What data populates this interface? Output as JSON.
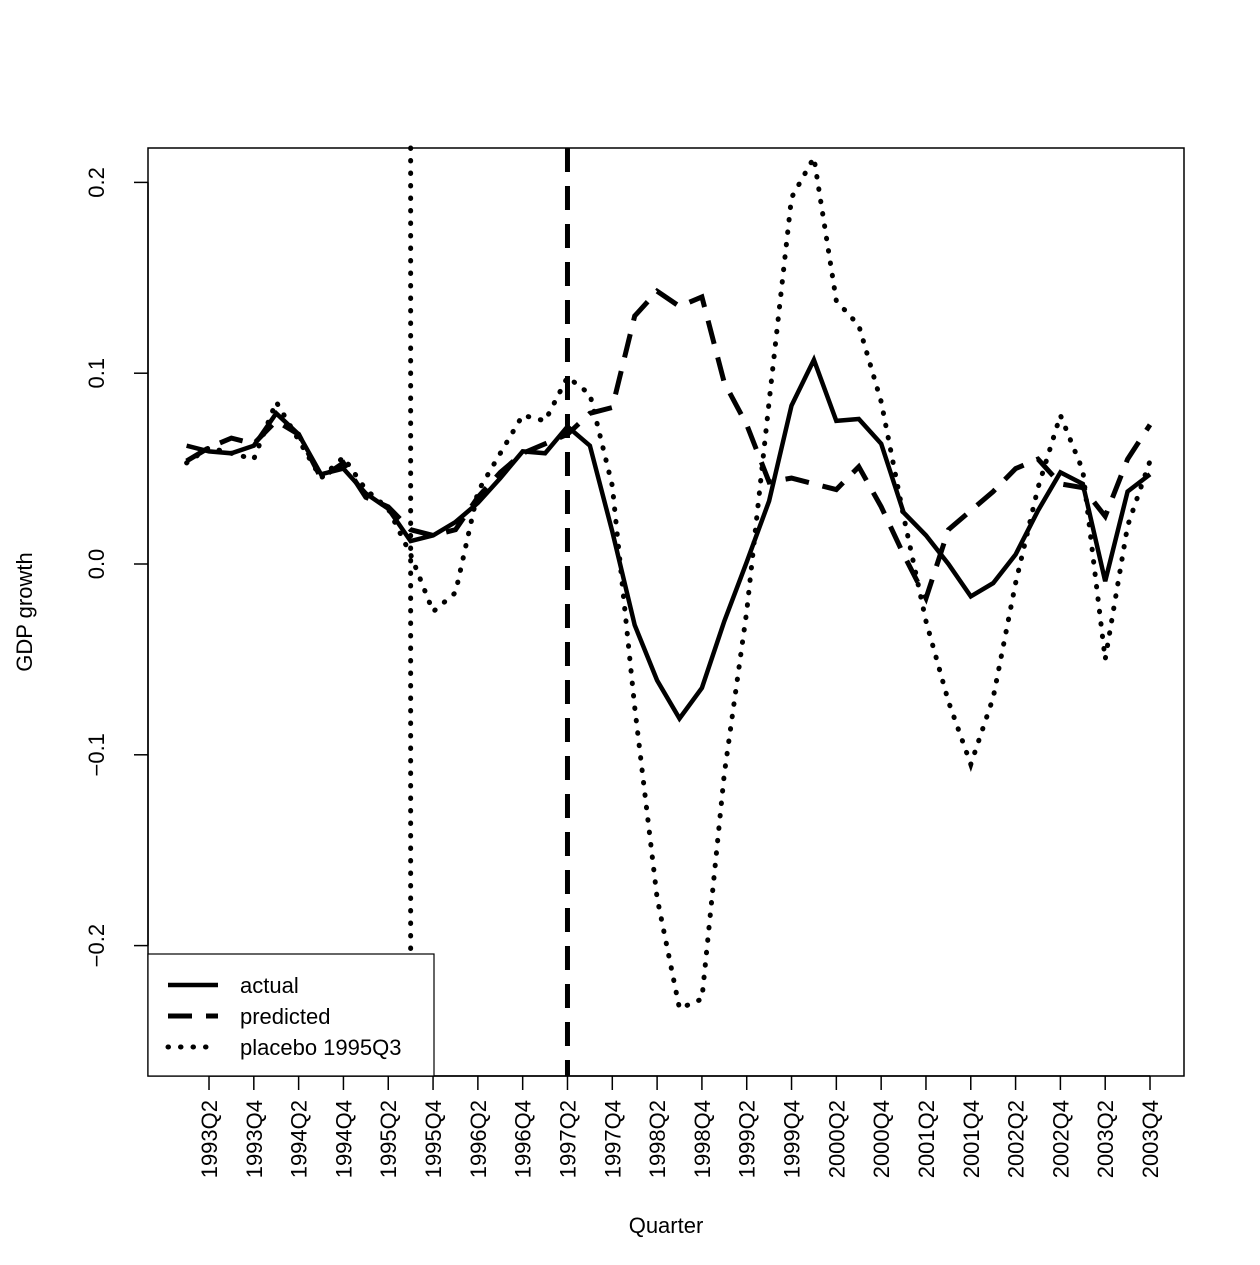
{
  "chart_data": {
    "type": "line",
    "xlabel": "Quarter",
    "ylabel": "GDP growth",
    "ylim": [
      -0.27,
      0.218
    ],
    "yticks": [
      {
        "value": -0.2,
        "label": "−0.2"
      },
      {
        "value": -0.1,
        "label": "−0.1"
      },
      {
        "value": 0.0,
        "label": "0.0"
      },
      {
        "value": 0.1,
        "label": "0.1"
      },
      {
        "value": 0.2,
        "label": "0.2"
      }
    ],
    "categories": [
      "1993Q1",
      "1993Q2",
      "1993Q3",
      "1993Q4",
      "1994Q1",
      "1994Q2",
      "1994Q3",
      "1994Q4",
      "1995Q1",
      "1995Q2",
      "1995Q3",
      "1995Q4",
      "1996Q1",
      "1996Q2",
      "1996Q3",
      "1996Q4",
      "1997Q1",
      "1997Q2",
      "1997Q3",
      "1997Q4",
      "1998Q1",
      "1998Q2",
      "1998Q3",
      "1998Q4",
      "1999Q1",
      "1999Q2",
      "1999Q3",
      "1999Q4",
      "2000Q1",
      "2000Q2",
      "2000Q3",
      "2000Q4",
      "2001Q1",
      "2001Q2",
      "2001Q3",
      "2001Q4",
      "2002Q1",
      "2002Q2",
      "2002Q3",
      "2002Q4",
      "2003Q1",
      "2003Q2",
      "2003Q3",
      "2003Q4"
    ],
    "x_tick_labels": [
      "1993Q2",
      "1993Q4",
      "1994Q2",
      "1994Q4",
      "1995Q2",
      "1995Q4",
      "1996Q2",
      "1996Q4",
      "1997Q2",
      "1997Q4",
      "1998Q2",
      "1998Q4",
      "1999Q2",
      "1999Q4",
      "2000Q2",
      "2000Q4",
      "2001Q2",
      "2001Q4",
      "2002Q2",
      "2002Q4",
      "2003Q2",
      "2003Q4"
    ],
    "series": [
      {
        "name": "actual",
        "style": "solid",
        "values": [
          0.062,
          0.059,
          0.058,
          0.062,
          0.079,
          0.068,
          0.047,
          0.05,
          0.037,
          0.029,
          0.012,
          0.015,
          0.022,
          0.032,
          0.045,
          0.059,
          0.058,
          0.072,
          0.062,
          0.017,
          -0.032,
          -0.061,
          -0.081,
          -0.065,
          -0.03,
          0.001,
          0.033,
          0.083,
          0.107,
          0.075,
          0.076,
          0.063,
          0.027,
          0.015,
          0.0,
          -0.017,
          -0.01,
          0.005,
          0.028,
          0.048,
          0.042,
          -0.009,
          0.038,
          0.047
        ]
      },
      {
        "name": "predicted",
        "style": "dashed",
        "values": [
          0.054,
          0.061,
          0.066,
          0.063,
          0.075,
          0.068,
          0.045,
          0.053,
          0.035,
          0.03,
          0.018,
          0.015,
          0.018,
          0.035,
          0.048,
          0.058,
          0.063,
          0.068,
          0.079,
          0.082,
          0.13,
          0.143,
          0.135,
          0.14,
          0.095,
          0.073,
          0.043,
          0.045,
          0.042,
          0.039,
          0.051,
          0.03,
          0.005,
          -0.018,
          0.018,
          0.028,
          0.038,
          0.05,
          0.055,
          0.042,
          0.04,
          0.025,
          0.055,
          0.073
        ]
      },
      {
        "name": "placebo 1995Q3",
        "style": "dotted",
        "values": [
          0.053,
          0.061,
          0.058,
          0.055,
          0.085,
          0.065,
          0.045,
          0.056,
          0.039,
          0.029,
          0.005,
          -0.025,
          -0.015,
          0.038,
          0.058,
          0.078,
          0.075,
          0.098,
          0.089,
          0.041,
          -0.075,
          -0.175,
          -0.233,
          -0.228,
          -0.11,
          -0.025,
          0.085,
          0.192,
          0.213,
          0.138,
          0.125,
          0.085,
          0.025,
          -0.03,
          -0.072,
          -0.105,
          -0.07,
          -0.01,
          0.04,
          0.078,
          0.049,
          -0.05,
          0.02,
          0.054
        ]
      }
    ],
    "vlines": [
      {
        "at": "1995Q3",
        "style": "dotted"
      },
      {
        "at": "1997Q2",
        "style": "dashed"
      }
    ],
    "legend": {
      "placement": "bottom-left",
      "entries": [
        {
          "label": "actual",
          "style": "solid"
        },
        {
          "label": "predicted",
          "style": "dashed"
        },
        {
          "label": "placebo 1995Q3",
          "style": "dotted"
        }
      ]
    },
    "grid": false
  }
}
